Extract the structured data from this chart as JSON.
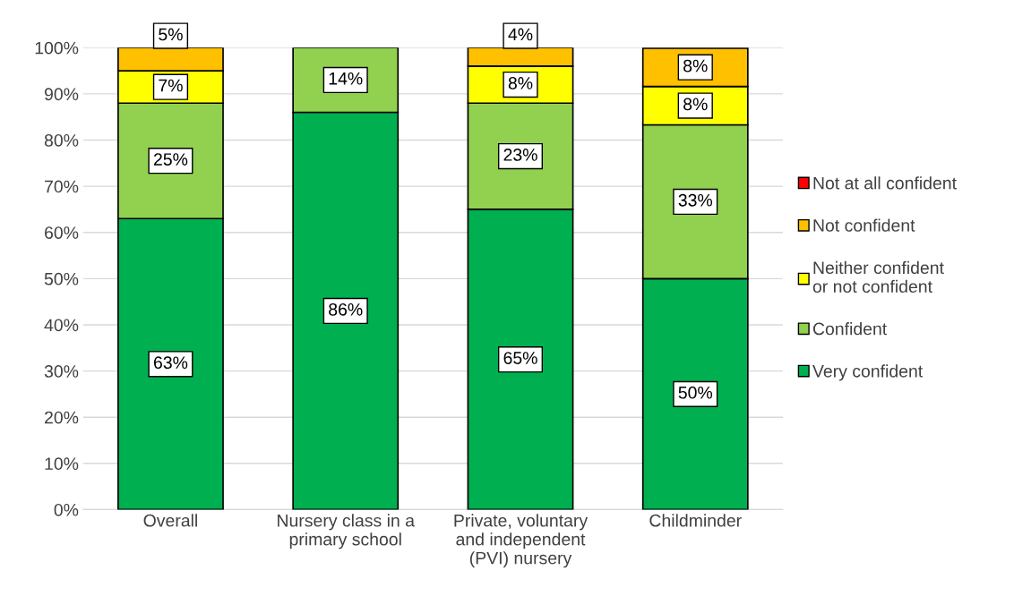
{
  "chart_data": {
    "type": "bar",
    "stacked": true,
    "categories": [
      "Overall",
      "Nursery class in a\nprimary school",
      "Private, voluntary\nand independent\n(PVI) nursery",
      "Childminder"
    ],
    "series": [
      {
        "name": "Very confident",
        "color": "#00b050",
        "values": [
          63,
          86,
          65,
          50
        ],
        "value_labels": [
          "63%",
          "86%",
          "65%",
          "50%"
        ]
      },
      {
        "name": "Confident",
        "color": "#92d050",
        "values": [
          25,
          14,
          23,
          33.3
        ],
        "value_labels": [
          "25%",
          "14%",
          "23%",
          "33%"
        ]
      },
      {
        "name": "Neither confident\nor not confident",
        "color": "#ffff00",
        "values": [
          7,
          null,
          8,
          8.3
        ],
        "value_labels": [
          "7%",
          null,
          "8%",
          "8%"
        ]
      },
      {
        "name": "Not confident",
        "color": "#ffc000",
        "values": [
          5,
          null,
          4,
          8.3
        ],
        "value_labels": [
          "5%",
          null,
          "4%",
          "8%"
        ]
      },
      {
        "name": "Not at all confident",
        "color": "#ff0000",
        "values": [
          null,
          null,
          null,
          null
        ],
        "value_labels": [
          null,
          null,
          null,
          null
        ]
      }
    ],
    "ylim": [
      0,
      100
    ],
    "yticks": [
      {
        "value": 0,
        "label": "0%"
      },
      {
        "value": 10,
        "label": "10%"
      },
      {
        "value": 20,
        "label": "20%"
      },
      {
        "value": 30,
        "label": "30%"
      },
      {
        "value": 40,
        "label": "40%"
      },
      {
        "value": 50,
        "label": "50%"
      },
      {
        "value": 60,
        "label": "60%"
      },
      {
        "value": 70,
        "label": "70%"
      },
      {
        "value": 80,
        "label": "80%"
      },
      {
        "value": 90,
        "label": "90%"
      },
      {
        "value": 100,
        "label": "100%"
      }
    ],
    "grid": "y",
    "legend": "right"
  }
}
